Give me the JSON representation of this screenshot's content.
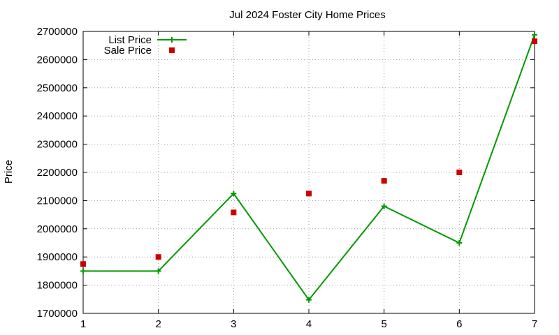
{
  "chart_data": {
    "type": "line",
    "title": "Jul 2024 Foster City Home Prices",
    "xlabel": "",
    "ylabel": "Price",
    "x": [
      1,
      2,
      3,
      4,
      5,
      6,
      7
    ],
    "xlim": [
      1,
      7
    ],
    "ylim": [
      1700000,
      2700000
    ],
    "xticks": [
      "1",
      "2",
      "3",
      "4",
      "5",
      "6",
      "7"
    ],
    "yticks": [
      "1700000",
      "1800000",
      "1900000",
      "2000000",
      "2100000",
      "2200000",
      "2300000",
      "2400000",
      "2500000",
      "2600000",
      "2700000"
    ],
    "grid": true,
    "legend_position": "top-left",
    "series": [
      {
        "name": "List Price",
        "style": "lines+crosses",
        "color": "#009900",
        "values": [
          1850000,
          1850000,
          2125000,
          1748000,
          2080000,
          1950000,
          2688000
        ]
      },
      {
        "name": "Sale Price",
        "style": "squares",
        "color": "#cc0000",
        "values": [
          1875000,
          1900000,
          2058000,
          2125000,
          2170000,
          2200000,
          2665000
        ]
      }
    ]
  }
}
